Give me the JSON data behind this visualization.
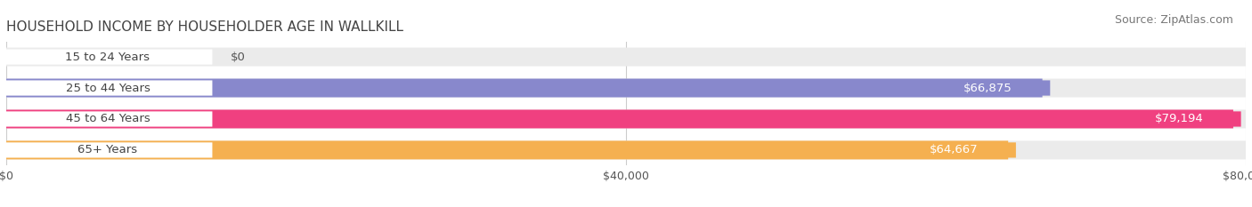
{
  "title": "HOUSEHOLD INCOME BY HOUSEHOLDER AGE IN WALLKILL",
  "source": "Source: ZipAtlas.com",
  "categories": [
    "15 to 24 Years",
    "25 to 44 Years",
    "45 to 64 Years",
    "65+ Years"
  ],
  "values": [
    0,
    66875,
    79194,
    64667
  ],
  "bar_colors": [
    "#5ecfcf",
    "#8888cc",
    "#f04080",
    "#f5b050"
  ],
  "bar_bg_color": "#ebebeb",
  "value_label_colors": [
    "#555555",
    "#ffffff",
    "#ffffff",
    "#ffffff"
  ],
  "xlim": [
    0,
    80000
  ],
  "xticks": [
    0,
    40000,
    80000
  ],
  "xtick_labels": [
    "$0",
    "$40,000",
    "$80,000"
  ],
  "background_color": "#ffffff",
  "title_fontsize": 11,
  "source_fontsize": 9,
  "bar_label_fontsize": 9.5,
  "value_label_fontsize": 9.5,
  "tick_fontsize": 9
}
